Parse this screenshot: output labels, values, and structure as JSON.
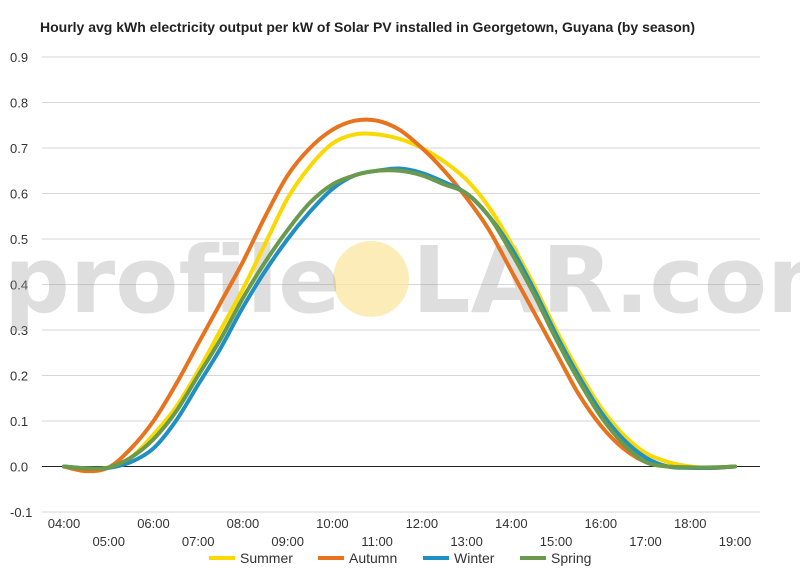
{
  "watermark": {
    "left": "profile",
    "right": "LAR.com",
    "sun_color": "#fbe7a0"
  },
  "chart_data": {
    "type": "line",
    "title": "Hourly avg kWh electricity output per kW of Solar PV installed in Georgetown, Guyana (by season)",
    "xlabel": "",
    "ylabel": "",
    "ylim": [
      -0.1,
      0.9
    ],
    "yticks": [
      -0.1,
      0.0,
      0.1,
      0.2,
      0.3,
      0.4,
      0.5,
      0.6,
      0.7,
      0.8,
      0.9
    ],
    "ytick_labels": [
      "-0.1",
      "0.0",
      "0.1",
      "0.2",
      "0.3",
      "0.4",
      "0.5",
      "0.6",
      "0.7",
      "0.8",
      "0.9"
    ],
    "xlim": [
      4,
      19
    ],
    "xticks": [
      4,
      5,
      6,
      7,
      8,
      9,
      10,
      11,
      12,
      13,
      14,
      15,
      16,
      17,
      18,
      19
    ],
    "xtick_labels": [
      "04:00",
      "05:00",
      "06:00",
      "07:00",
      "08:00",
      "09:00",
      "10:00",
      "11:00",
      "12:00",
      "13:00",
      "14:00",
      "15:00",
      "16:00",
      "17:00",
      "18:00",
      "19:00"
    ],
    "grid": true,
    "legend": "bottom",
    "series": [
      {
        "name": "Summer",
        "color": "#f9d900",
        "x": [
          4,
          4.5,
          5,
          5.5,
          6,
          6.5,
          7,
          7.5,
          8,
          8.5,
          9,
          9.5,
          10,
          10.5,
          11,
          11.5,
          12,
          12.5,
          13,
          13.5,
          14,
          14.5,
          15,
          15.5,
          16,
          16.5,
          17,
          17.5,
          18,
          18.5,
          19
        ],
        "values": [
          0.0,
          -0.005,
          -0.002,
          0.02,
          0.07,
          0.13,
          0.21,
          0.3,
          0.39,
          0.49,
          0.59,
          0.66,
          0.71,
          0.73,
          0.73,
          0.72,
          0.7,
          0.67,
          0.63,
          0.57,
          0.49,
          0.4,
          0.3,
          0.21,
          0.13,
          0.07,
          0.03,
          0.01,
          0.0,
          -0.003,
          0.0
        ]
      },
      {
        "name": "Autumn",
        "color": "#e8731f",
        "x": [
          4,
          4.5,
          5,
          5.5,
          6,
          6.5,
          7,
          7.5,
          8,
          8.5,
          9,
          9.5,
          10,
          10.5,
          11,
          11.5,
          12,
          12.5,
          13,
          13.5,
          14,
          14.5,
          15,
          15.5,
          16,
          16.5,
          17,
          17.5,
          18,
          18.5,
          19
        ],
        "values": [
          0.0,
          -0.01,
          -0.002,
          0.04,
          0.1,
          0.18,
          0.27,
          0.36,
          0.45,
          0.55,
          0.64,
          0.7,
          0.74,
          0.76,
          0.76,
          0.74,
          0.7,
          0.65,
          0.59,
          0.52,
          0.43,
          0.34,
          0.25,
          0.16,
          0.09,
          0.04,
          0.01,
          0.0,
          -0.002,
          -0.003,
          0.0
        ]
      },
      {
        "name": "Winter",
        "color": "#1f8fc4",
        "x": [
          4,
          4.5,
          5,
          5.5,
          6,
          6.5,
          7,
          7.5,
          8,
          8.5,
          9,
          9.5,
          10,
          10.5,
          11,
          11.5,
          12,
          12.5,
          13,
          13.5,
          14,
          14.5,
          15,
          15.5,
          16,
          16.5,
          17,
          17.5,
          18,
          18.5,
          19
        ],
        "values": [
          0.0,
          -0.004,
          -0.003,
          0.01,
          0.04,
          0.1,
          0.18,
          0.26,
          0.35,
          0.43,
          0.5,
          0.56,
          0.61,
          0.64,
          0.65,
          0.655,
          0.645,
          0.625,
          0.6,
          0.55,
          0.48,
          0.39,
          0.29,
          0.2,
          0.12,
          0.06,
          0.02,
          0.0,
          -0.003,
          -0.003,
          0.0
        ]
      },
      {
        "name": "Spring",
        "color": "#6a9a4b",
        "x": [
          4,
          4.5,
          5,
          5.5,
          6,
          6.5,
          7,
          7.5,
          8,
          8.5,
          9,
          9.5,
          10,
          10.5,
          11,
          11.5,
          12,
          12.5,
          13,
          13.5,
          14,
          14.5,
          15,
          15.5,
          16,
          16.5,
          17,
          17.5,
          18,
          18.5,
          19
        ],
        "values": [
          0.0,
          -0.004,
          -0.002,
          0.02,
          0.06,
          0.12,
          0.2,
          0.28,
          0.37,
          0.45,
          0.52,
          0.58,
          0.62,
          0.64,
          0.65,
          0.65,
          0.64,
          0.62,
          0.6,
          0.55,
          0.47,
          0.38,
          0.28,
          0.19,
          0.11,
          0.05,
          0.01,
          0.0,
          -0.002,
          -0.002,
          0.0
        ]
      }
    ]
  }
}
